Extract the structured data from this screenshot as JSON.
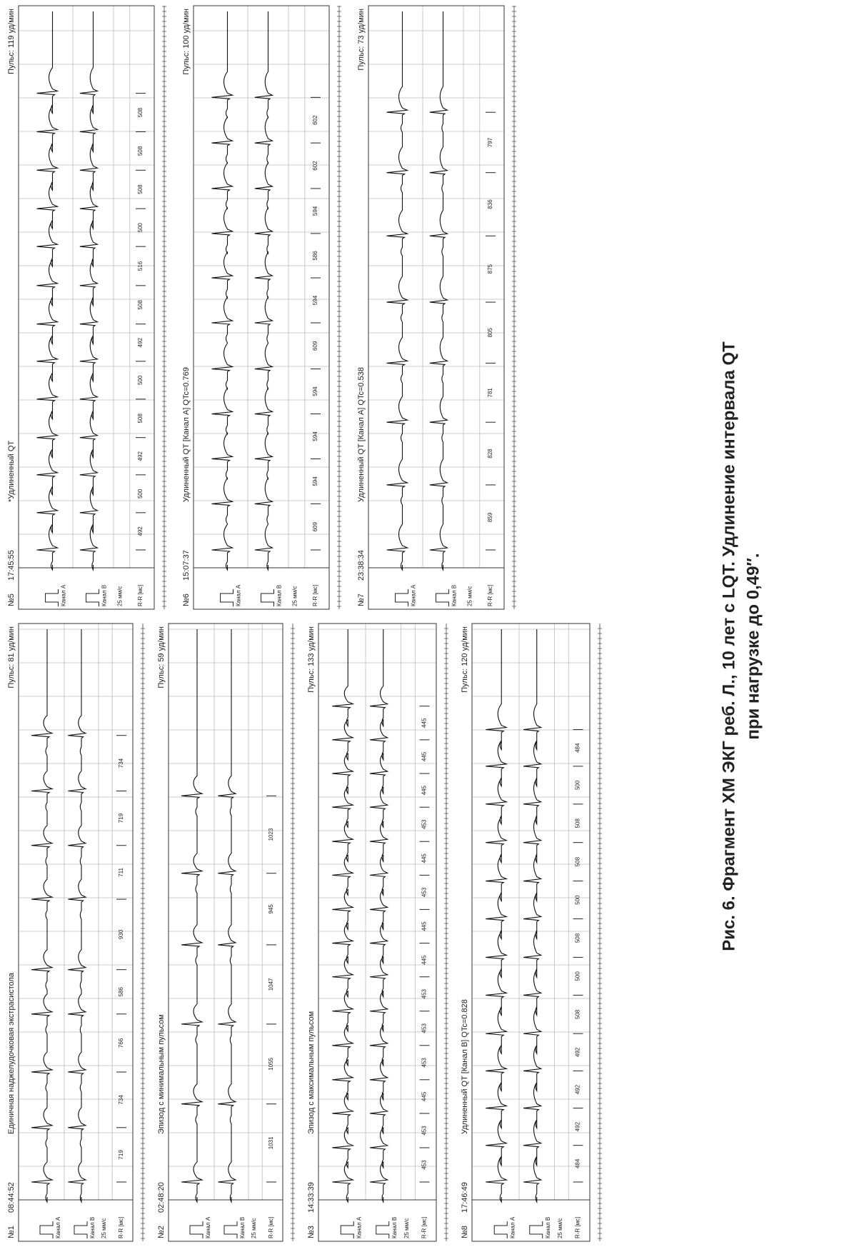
{
  "labels": {
    "channel_a": "Канал A",
    "channel_b": "Канал B",
    "speed": "25 мм/с",
    "rr": "R-R [мс]"
  },
  "panels": [
    {
      "number": "№1",
      "time": "08:44:52",
      "title": "Единичная наджелудочковая экстрасистола",
      "pulse": "Пульс: 81 уд/мин",
      "rr": [
        719,
        734,
        766,
        586,
        930,
        711,
        719,
        734
      ]
    },
    {
      "number": "№2",
      "time": "02:48:20",
      "title": "Эпизод с минимальным пульсом",
      "pulse": "Пульс: 59 уд/мин",
      "rr": [
        1031,
        1055,
        1047,
        945,
        1023
      ]
    },
    {
      "number": "№3",
      "time": "14:33:39",
      "title": "Эпизод с максимальным пульсом",
      "pulse": "Пульс: 133 уд/мин",
      "rr": [
        453,
        453,
        445,
        453,
        453,
        453,
        445,
        445,
        453,
        445,
        453,
        445,
        445,
        445
      ]
    },
    {
      "number": "№8",
      "time": "17:46:49",
      "title": "Удлиненный QT [Канал B] QTc=0.828",
      "pulse": "Пульс: 120 уд/мин",
      "rr": [
        484,
        492,
        492,
        492,
        508,
        500,
        508,
        500,
        508,
        508,
        500,
        484
      ]
    },
    {
      "number": "№5",
      "time": "17:45:55",
      "title": "*Удлиненный QT",
      "pulse": "Пульс: 119 уд/мин",
      "rr": [
        492,
        500,
        492,
        508,
        500,
        492,
        508,
        516,
        500,
        508,
        508,
        508
      ]
    },
    {
      "number": "№6",
      "time": "15:07:37",
      "title": "Удлиненный QT [Канал A] QTc=0.769",
      "pulse": "Пульс: 100 уд/мин",
      "rr": [
        609,
        594,
        594,
        594,
        609,
        594,
        586,
        594,
        602,
        602
      ]
    },
    {
      "number": "№7",
      "time": "23:38:34",
      "title": "Удлиненный QT [Канал A] QTc=0.538",
      "pulse": "Пульс: 73 уд/мин",
      "rr": [
        859,
        828,
        781,
        805,
        875,
        836,
        797
      ]
    }
  ],
  "caption": [
    "Рис. 6. Фрагмент ХМ ЭКГ реб. Л., 10 лет с LQT. Удлинение интервала QT",
    "при нагрузке до 0,49″."
  ]
}
